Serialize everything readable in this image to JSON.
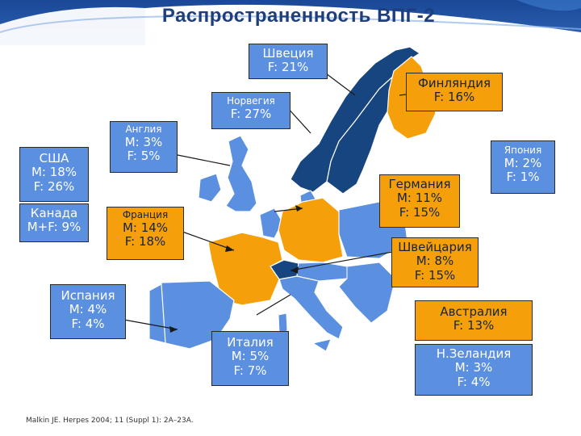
{
  "title": "Распространенность  ВПГ-2",
  "colors": {
    "header_blue": "#1f4e99",
    "highlight_orange": "#f5a00a",
    "country_blue": "#5b8fe0",
    "dark_blue": "#16457f",
    "title_text": "#1f3f7c"
  },
  "labels": {
    "sweden": {
      "name": "Швеция",
      "line1": "F: 21%"
    },
    "finland": {
      "name": "Финляндия",
      "line1": "F: 16%"
    },
    "norway": {
      "name": "Норвегия",
      "line1": "F: 27%"
    },
    "england": {
      "name": "Англия",
      "line1": "M: 3%",
      "line2": "F: 5%"
    },
    "usa": {
      "name": "США",
      "line1": "M: 18%",
      "line2": "F: 26%"
    },
    "canada": {
      "name": "Канада",
      "line1": "M+F: 9%"
    },
    "france": {
      "name": "Франция",
      "line1": "M: 14%",
      "line2": "F: 18%"
    },
    "germany": {
      "name": "Германия",
      "line1": "M: 11%",
      "line2": "F: 15%"
    },
    "japan": {
      "name": "Япония",
      "line1": "M: 2%",
      "line2": "F: 1%"
    },
    "switzerland": {
      "name": "Швейцария",
      "line1": "M: 8%",
      "line2": "F: 15%"
    },
    "spain": {
      "name": "Испания",
      "line1": "M: 4%",
      "line2": "F: 4%"
    },
    "australia": {
      "name": "Австралия",
      "line1": "F: 13%"
    },
    "italy": {
      "name": "Италия",
      "line1": "M: 5%",
      "line2": "F: 7%"
    },
    "new_zealand": {
      "name": "Н.Зеландия",
      "line1": "M: 3%",
      "line2": "F: 4%"
    }
  },
  "citation": "Malkin JE. Herpes 2004; 11 (Suppl 1): 2A–23A."
}
